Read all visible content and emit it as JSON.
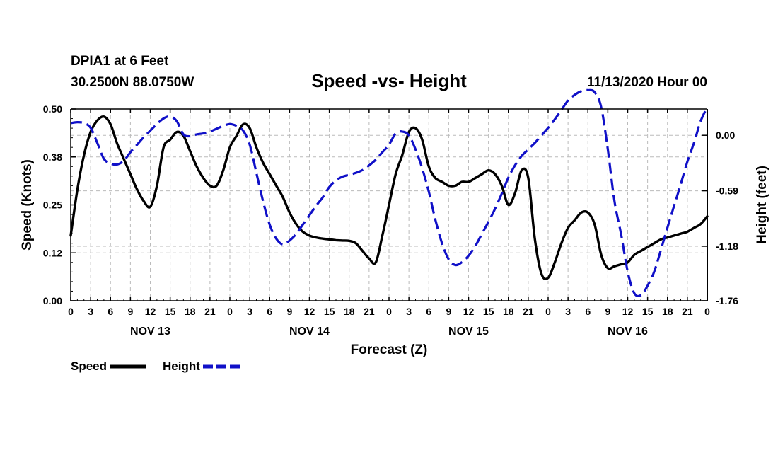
{
  "header": {
    "station": "DPIA1 at 6 Feet",
    "coords": "30.2500N 88.0750W",
    "title": "Speed -vs- Height",
    "date": "11/13/2020 Hour 00"
  },
  "colors": {
    "speed": "#000000",
    "height": "#1010c8",
    "grid": "#bbbbbb"
  },
  "legend": {
    "speed_label": "Speed",
    "height_label": "Height"
  },
  "chart_data": {
    "type": "line",
    "title": "Speed -vs- Height",
    "xlabel": "Forecast (Z)",
    "ylabel": "Speed (Knots)",
    "y2label": "Height (feet)",
    "xlim": [
      0,
      96
    ],
    "ylim": [
      0,
      0.5
    ],
    "y2lim": [
      -1.76,
      0.28
    ],
    "yticks": [
      "0.00",
      "0.12",
      "0.25",
      "0.38",
      "0.50"
    ],
    "ytick_values": [
      0,
      0.125,
      0.25,
      0.375,
      0.5
    ],
    "y2ticks": [
      "0.00",
      "-0.59",
      "-1.18",
      "-1.76"
    ],
    "y2tick_values": [
      0,
      -0.59,
      -1.18,
      -1.76
    ],
    "xticks": [
      {
        "hour": 0,
        "label": "0"
      },
      {
        "hour": 3,
        "label": "3"
      },
      {
        "hour": 6,
        "label": "6"
      },
      {
        "hour": 9,
        "label": "9"
      },
      {
        "hour": 12,
        "label": "12"
      },
      {
        "hour": 15,
        "label": "15"
      },
      {
        "hour": 18,
        "label": "18"
      },
      {
        "hour": 21,
        "label": "21"
      },
      {
        "hour": 24,
        "label": "0"
      },
      {
        "hour": 27,
        "label": "3"
      },
      {
        "hour": 30,
        "label": "6"
      },
      {
        "hour": 33,
        "label": "9"
      },
      {
        "hour": 36,
        "label": "12"
      },
      {
        "hour": 39,
        "label": "15"
      },
      {
        "hour": 42,
        "label": "18"
      },
      {
        "hour": 45,
        "label": "21"
      },
      {
        "hour": 48,
        "label": "0"
      },
      {
        "hour": 51,
        "label": "3"
      },
      {
        "hour": 54,
        "label": "6"
      },
      {
        "hour": 57,
        "label": "9"
      },
      {
        "hour": 60,
        "label": "12"
      },
      {
        "hour": 63,
        "label": "15"
      },
      {
        "hour": 66,
        "label": "18"
      },
      {
        "hour": 69,
        "label": "21"
      },
      {
        "hour": 72,
        "label": "0"
      },
      {
        "hour": 75,
        "label": "3"
      },
      {
        "hour": 78,
        "label": "6"
      },
      {
        "hour": 81,
        "label": "9"
      },
      {
        "hour": 84,
        "label": "12"
      },
      {
        "hour": 87,
        "label": "15"
      },
      {
        "hour": 90,
        "label": "18"
      },
      {
        "hour": 93,
        "label": "21"
      },
      {
        "hour": 96,
        "label": "0"
      }
    ],
    "day_labels": [
      {
        "hour": 12,
        "label": "NOV 13"
      },
      {
        "hour": 36,
        "label": "NOV 14"
      },
      {
        "hour": 60,
        "label": "NOV 15"
      },
      {
        "hour": 84,
        "label": "NOV 16"
      }
    ],
    "series": [
      {
        "name": "Speed",
        "axis": "left",
        "style": "solid",
        "x": [
          0,
          1,
          2,
          3,
          4,
          5,
          6,
          7,
          8,
          9,
          10,
          11,
          12,
          13,
          14,
          15,
          16,
          17,
          18,
          19,
          20,
          21,
          22,
          23,
          24,
          25,
          26,
          27,
          28,
          29,
          30,
          31,
          32,
          33,
          34,
          35,
          36,
          37,
          38,
          39,
          40,
          41,
          42,
          43,
          44,
          45,
          46,
          47,
          48,
          49,
          50,
          51,
          52,
          53,
          54,
          55,
          56,
          57,
          58,
          59,
          60,
          61,
          62,
          63,
          64,
          65,
          66,
          67,
          68,
          69,
          70,
          71,
          72,
          73,
          74,
          75,
          76,
          77,
          78,
          79,
          80,
          81,
          82,
          83,
          84,
          85,
          86,
          87,
          88,
          89,
          90,
          91,
          92,
          93,
          94,
          95,
          96
        ],
        "values": [
          0.17,
          0.29,
          0.38,
          0.44,
          0.47,
          0.48,
          0.46,
          0.41,
          0.37,
          0.33,
          0.29,
          0.26,
          0.245,
          0.3,
          0.4,
          0.42,
          0.44,
          0.43,
          0.39,
          0.35,
          0.32,
          0.3,
          0.3,
          0.34,
          0.4,
          0.43,
          0.46,
          0.45,
          0.4,
          0.36,
          0.33,
          0.3,
          0.27,
          0.23,
          0.2,
          0.18,
          0.17,
          0.165,
          0.162,
          0.16,
          0.158,
          0.157,
          0.156,
          0.15,
          0.13,
          0.11,
          0.1,
          0.17,
          0.25,
          0.33,
          0.38,
          0.44,
          0.45,
          0.42,
          0.35,
          0.32,
          0.31,
          0.3,
          0.3,
          0.31,
          0.31,
          0.32,
          0.33,
          0.34,
          0.33,
          0.3,
          0.25,
          0.28,
          0.34,
          0.32,
          0.16,
          0.07,
          0.06,
          0.1,
          0.15,
          0.19,
          0.21,
          0.23,
          0.23,
          0.2,
          0.12,
          0.085,
          0.09,
          0.095,
          0.1,
          0.12,
          0.13,
          0.14,
          0.15,
          0.16,
          0.165,
          0.17,
          0.175,
          0.18,
          0.19,
          0.2,
          0.22
        ]
      },
      {
        "name": "Height",
        "axis": "right",
        "style": "dashed",
        "x": [
          0,
          1,
          2,
          3,
          4,
          5,
          6,
          7,
          8,
          9,
          10,
          11,
          12,
          13,
          14,
          15,
          16,
          17,
          18,
          19,
          20,
          21,
          22,
          23,
          24,
          25,
          26,
          27,
          28,
          29,
          30,
          31,
          32,
          33,
          34,
          35,
          36,
          37,
          38,
          39,
          40,
          41,
          42,
          43,
          44,
          45,
          46,
          47,
          48,
          49,
          50,
          51,
          52,
          53,
          54,
          55,
          56,
          57,
          58,
          59,
          60,
          61,
          62,
          63,
          64,
          65,
          66,
          67,
          68,
          69,
          70,
          71,
          72,
          73,
          74,
          75,
          76,
          77,
          78,
          79,
          80,
          81,
          82,
          83,
          84,
          85,
          86,
          87,
          88,
          89,
          90,
          91,
          92,
          93,
          94,
          95,
          96
        ],
        "values": [
          0.13,
          0.14,
          0.13,
          0.08,
          -0.08,
          -0.25,
          -0.3,
          -0.31,
          -0.27,
          -0.18,
          -0.1,
          -0.02,
          0.05,
          0.12,
          0.18,
          0.2,
          0.15,
          0.01,
          -0.01,
          0.01,
          0.02,
          0.04,
          0.07,
          0.1,
          0.12,
          0.1,
          0.05,
          -0.1,
          -0.4,
          -0.7,
          -0.95,
          -1.1,
          -1.16,
          -1.12,
          -1.05,
          -0.95,
          -0.85,
          -0.75,
          -0.66,
          -0.55,
          -0.48,
          -0.44,
          -0.42,
          -0.4,
          -0.37,
          -0.32,
          -0.26,
          -0.18,
          -0.1,
          0.02,
          0.04,
          0.0,
          -0.15,
          -0.35,
          -0.6,
          -0.9,
          -1.15,
          -1.32,
          -1.38,
          -1.35,
          -1.28,
          -1.18,
          -1.05,
          -0.92,
          -0.78,
          -0.62,
          -0.45,
          -0.32,
          -0.22,
          -0.15,
          -0.08,
          0.0,
          0.08,
          0.17,
          0.27,
          0.37,
          0.43,
          0.47,
          0.48,
          0.46,
          0.3,
          -0.15,
          -0.7,
          -1.05,
          -1.45,
          -1.68,
          -1.7,
          -1.6,
          -1.45,
          -1.22,
          -0.98,
          -0.75,
          -0.52,
          -0.28,
          -0.08,
          0.15,
          0.3
        ]
      }
    ]
  }
}
